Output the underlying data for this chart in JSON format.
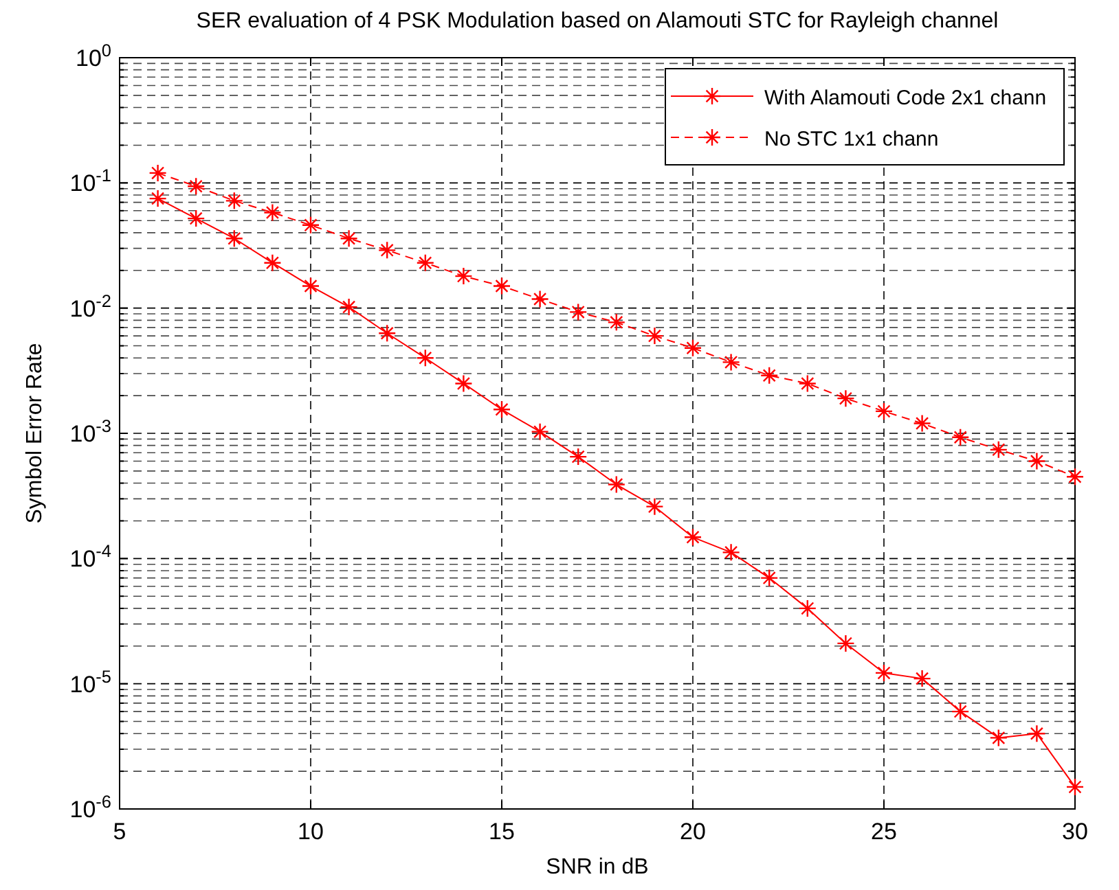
{
  "chart_data": {
    "type": "line",
    "title": "SER evaluation of 4 PSK Modulation based on Alamouti STC for Rayleigh channel",
    "xlabel": "SNR in dB",
    "ylabel": "Symbol Error Rate",
    "x": [
      6,
      7,
      8,
      9,
      10,
      11,
      12,
      13,
      14,
      15,
      16,
      17,
      18,
      19,
      20,
      21,
      22,
      23,
      24,
      25,
      26,
      27,
      28,
      29,
      30
    ],
    "series": [
      {
        "name": "With Alamouti Code 2x1 chann",
        "color": "#ff0000",
        "line_style": "solid",
        "values": [
          0.075,
          0.052,
          0.036,
          0.023,
          0.015,
          0.0102,
          0.0063,
          0.004,
          0.0025,
          0.00155,
          0.00103,
          0.00065,
          0.00039,
          0.00026,
          0.000148,
          0.000112,
          7e-05,
          4e-05,
          2.1e-05,
          1.22e-05,
          1.1e-05,
          6e-06,
          3.7e-06,
          4e-06,
          1.5e-06
        ]
      },
      {
        "name": "No STC 1x1 chann",
        "color": "#ff0000",
        "line_style": "dashed",
        "values": [
          0.12,
          0.094,
          0.072,
          0.058,
          0.046,
          0.036,
          0.029,
          0.023,
          0.018,
          0.015,
          0.0118,
          0.0093,
          0.0077,
          0.006,
          0.0048,
          0.0037,
          0.0029,
          0.0025,
          0.0019,
          0.0015,
          0.0012,
          0.00093,
          0.00074,
          0.0006,
          0.00045
        ]
      }
    ],
    "xlim": [
      5,
      30
    ],
    "xticks": [
      5,
      10,
      15,
      20,
      25,
      30
    ],
    "ylim": [
      1e-06,
      1
    ],
    "yticks": [
      {
        "value": 1e-06,
        "label": "10$^{-6}$"
      },
      {
        "value": 1e-05,
        "label": "10$^{-5}$"
      },
      {
        "value": 0.0001,
        "label": "10$^{-4}$"
      },
      {
        "value": 0.001,
        "label": "10$^{-3}$"
      },
      {
        "value": 0.01,
        "label": "10$^{-2}$"
      },
      {
        "value": 0.1,
        "label": "10$^{-1}$"
      },
      {
        "value": 1,
        "label": "10$^{0}$"
      }
    ],
    "log": "y",
    "grid": true,
    "legend": "top right",
    "marker": "cross"
  }
}
